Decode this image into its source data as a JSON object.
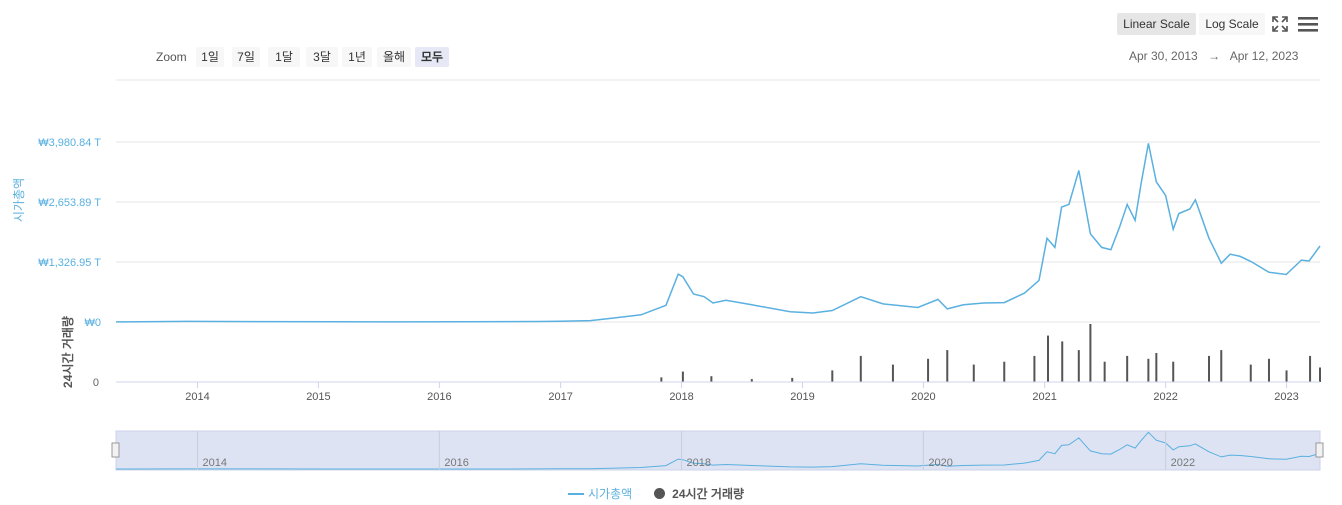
{
  "toolbar": {
    "zoom_label": "Zoom",
    "zoom_buttons": [
      "1일",
      "7일",
      "1달",
      "3달",
      "1년",
      "올해",
      "모두"
    ],
    "zoom_active": "모두",
    "linear_label": "Linear Scale",
    "log_label": "Log Scale",
    "range_from": "Apr 30, 2013",
    "range_arrow": "→",
    "range_to": "Apr 12, 2023"
  },
  "icons": {
    "fullscreen": "fullscreen-icon",
    "menu": "hamburger-menu-icon"
  },
  "colors": {
    "market_cap": "#5ab0e0",
    "volume": "#555555",
    "navigator_fill": "#dde3f3"
  },
  "chart_data": {
    "type": "line",
    "x_range": [
      "2013-04-30",
      "2023-04-12"
    ],
    "x_ticks": [
      "2014",
      "2015",
      "2016",
      "2017",
      "2018",
      "2019",
      "2020",
      "2021",
      "2022",
      "2023"
    ],
    "navigator_ticks": [
      "2014",
      "2016",
      "2018",
      "2020",
      "2022"
    ],
    "ylabel": "시가총액",
    "yticks": [
      "₩0",
      "₩1,326.95 T",
      "₩2,653.89 T",
      "₩3,980.84 T"
    ],
    "ylim": [
      0,
      3980.84
    ],
    "y_unit": "T KRW",
    "volume_ylabel": "24시간 거래량",
    "volume_tick": "0",
    "grid": true,
    "legend_position": "bottom-center",
    "series": [
      {
        "name": "시가총액",
        "kind": "line",
        "x": [
          "2013-04-30",
          "2013-11-30",
          "2014-06-30",
          "2015-01-30",
          "2015-08-30",
          "2016-03-30",
          "2016-10-30",
          "2017-01-01",
          "2017-04-01",
          "2017-06-01",
          "2017-09-01",
          "2017-11-15",
          "2017-12-22",
          "2018-01-05",
          "2018-02-06",
          "2018-03-10",
          "2018-04-06",
          "2018-05-15",
          "2018-08-01",
          "2018-11-25",
          "2019-02-01",
          "2019-04-01",
          "2019-06-26",
          "2019-09-01",
          "2019-12-15",
          "2020-02-14",
          "2020-03-13",
          "2020-05-01",
          "2020-07-01",
          "2020-09-01",
          "2020-11-01",
          "2020-12-15",
          "2021-01-08",
          "2021-02-01",
          "2021-02-21",
          "2021-03-15",
          "2021-04-14",
          "2021-05-19",
          "2021-06-22",
          "2021-07-20",
          "2021-08-15",
          "2021-09-07",
          "2021-10-01",
          "2021-10-20",
          "2021-11-10",
          "2021-12-04",
          "2022-01-01",
          "2022-01-24",
          "2022-02-10",
          "2022-03-15",
          "2022-04-01",
          "2022-05-12",
          "2022-06-18",
          "2022-07-15",
          "2022-08-14",
          "2022-09-15",
          "2022-11-09",
          "2022-12-31",
          "2023-02-15",
          "2023-03-10",
          "2023-04-12"
        ],
        "values": [
          2,
          14,
          8,
          5,
          3,
          5,
          12,
          18,
          30,
          80,
          160,
          370,
          1060,
          1000,
          620,
          560,
          420,
          480,
          380,
          225,
          200,
          255,
          560,
          400,
          320,
          500,
          290,
          380,
          420,
          430,
          640,
          920,
          1850,
          1650,
          2540,
          2600,
          3350,
          1950,
          1650,
          1600,
          2100,
          2600,
          2250,
          3100,
          3950,
          3100,
          2800,
          2050,
          2400,
          2500,
          2700,
          1850,
          1300,
          1500,
          1450,
          1340,
          1100,
          1050,
          1370,
          1350,
          1680
        ]
      },
      {
        "name": "24시간 거래량",
        "kind": "bar",
        "x": [
          "2017-11-01",
          "2018-01-05",
          "2018-04-01",
          "2018-08-01",
          "2018-12-01",
          "2019-04-01",
          "2019-06-26",
          "2019-10-01",
          "2020-01-15",
          "2020-03-13",
          "2020-06-01",
          "2020-09-01",
          "2020-12-01",
          "2021-01-11",
          "2021-02-23",
          "2021-04-14",
          "2021-05-19",
          "2021-07-01",
          "2021-09-07",
          "2021-11-10",
          "2021-12-04",
          "2022-01-24",
          "2022-05-12",
          "2022-06-18",
          "2022-09-15",
          "2022-11-09",
          "2023-01-01",
          "2023-03-13",
          "2023-04-12"
        ],
        "values": [
          8,
          18,
          10,
          5,
          7,
          20,
          45,
          30,
          40,
          55,
          30,
          35,
          45,
          80,
          70,
          55,
          100,
          35,
          45,
          40,
          50,
          35,
          45,
          55,
          30,
          40,
          20,
          45,
          25
        ]
      }
    ]
  },
  "legend": {
    "market_cap_label": "시가총액",
    "volume_label": "24시간 거래량"
  }
}
